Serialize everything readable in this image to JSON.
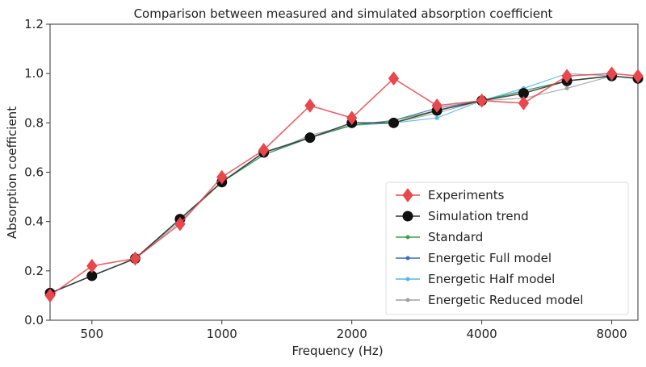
{
  "chart_data": {
    "type": "line",
    "title": "Comparison between measured and simulated absorption coefficient",
    "xlabel": "Frequency (Hz)",
    "ylabel": "Absorption coefficient",
    "xscale": "log",
    "xlim": [
      400,
      9200
    ],
    "ylim": [
      0.0,
      1.2
    ],
    "xticks": [
      500,
      1000,
      2000,
      4000,
      8000
    ],
    "xtick_labels": [
      "500",
      "1000",
      "2000",
      "4000",
      "8000"
    ],
    "yticks": [
      0.0,
      0.2,
      0.4,
      0.6,
      0.8,
      1.0,
      1.2
    ],
    "ytick_labels": [
      "0.0",
      "0.2",
      "0.4",
      "0.6",
      "0.8",
      "1.0",
      "1.2"
    ],
    "legend_position": "lower-right",
    "grid": false,
    "x": [
      400,
      500,
      630,
      800,
      1000,
      1250,
      1600,
      2000,
      2500,
      3150,
      4000,
      5000,
      6300,
      8000,
      9200
    ],
    "series": [
      {
        "name": "Experiments",
        "color": "#e8474c",
        "marker": "diamond",
        "values": [
          0.1,
          0.22,
          0.25,
          0.39,
          0.58,
          0.69,
          0.87,
          0.82,
          0.98,
          0.87,
          0.89,
          0.88,
          0.99,
          1.0,
          0.99
        ]
      },
      {
        "name": "Simulation trend",
        "color": "#333333",
        "marker": "circle",
        "values": [
          0.11,
          0.18,
          0.25,
          0.41,
          0.56,
          0.68,
          0.74,
          0.8,
          0.8,
          0.85,
          0.89,
          0.92,
          0.97,
          0.99,
          0.98
        ]
      },
      {
        "name": "Standard",
        "color": "#3aa04a",
        "marker": "dot",
        "values": [
          0.11,
          0.18,
          0.25,
          0.41,
          0.56,
          0.67,
          0.74,
          0.79,
          0.81,
          0.85,
          0.89,
          0.93,
          0.97,
          0.99,
          0.98
        ]
      },
      {
        "name": "Energetic Full model",
        "color": "#3a6fb6",
        "marker": "dot",
        "values": [
          0.11,
          0.18,
          0.25,
          0.41,
          0.56,
          0.68,
          0.74,
          0.79,
          0.81,
          0.86,
          0.89,
          0.93,
          0.97,
          0.99,
          0.98
        ]
      },
      {
        "name": "Energetic Half model",
        "color": "#4fb8e0",
        "marker": "dot",
        "values": [
          0.11,
          0.18,
          0.25,
          0.41,
          0.56,
          0.67,
          0.74,
          0.79,
          0.8,
          0.82,
          0.89,
          0.94,
          1.0,
          0.99,
          0.98
        ]
      },
      {
        "name": "Energetic Reduced model",
        "color": "#a0a0a0",
        "marker": "dot",
        "values": [
          0.11,
          0.18,
          0.25,
          0.4,
          0.56,
          0.67,
          0.75,
          0.79,
          0.8,
          0.84,
          0.89,
          0.9,
          0.94,
          0.99,
          0.98
        ]
      }
    ]
  }
}
